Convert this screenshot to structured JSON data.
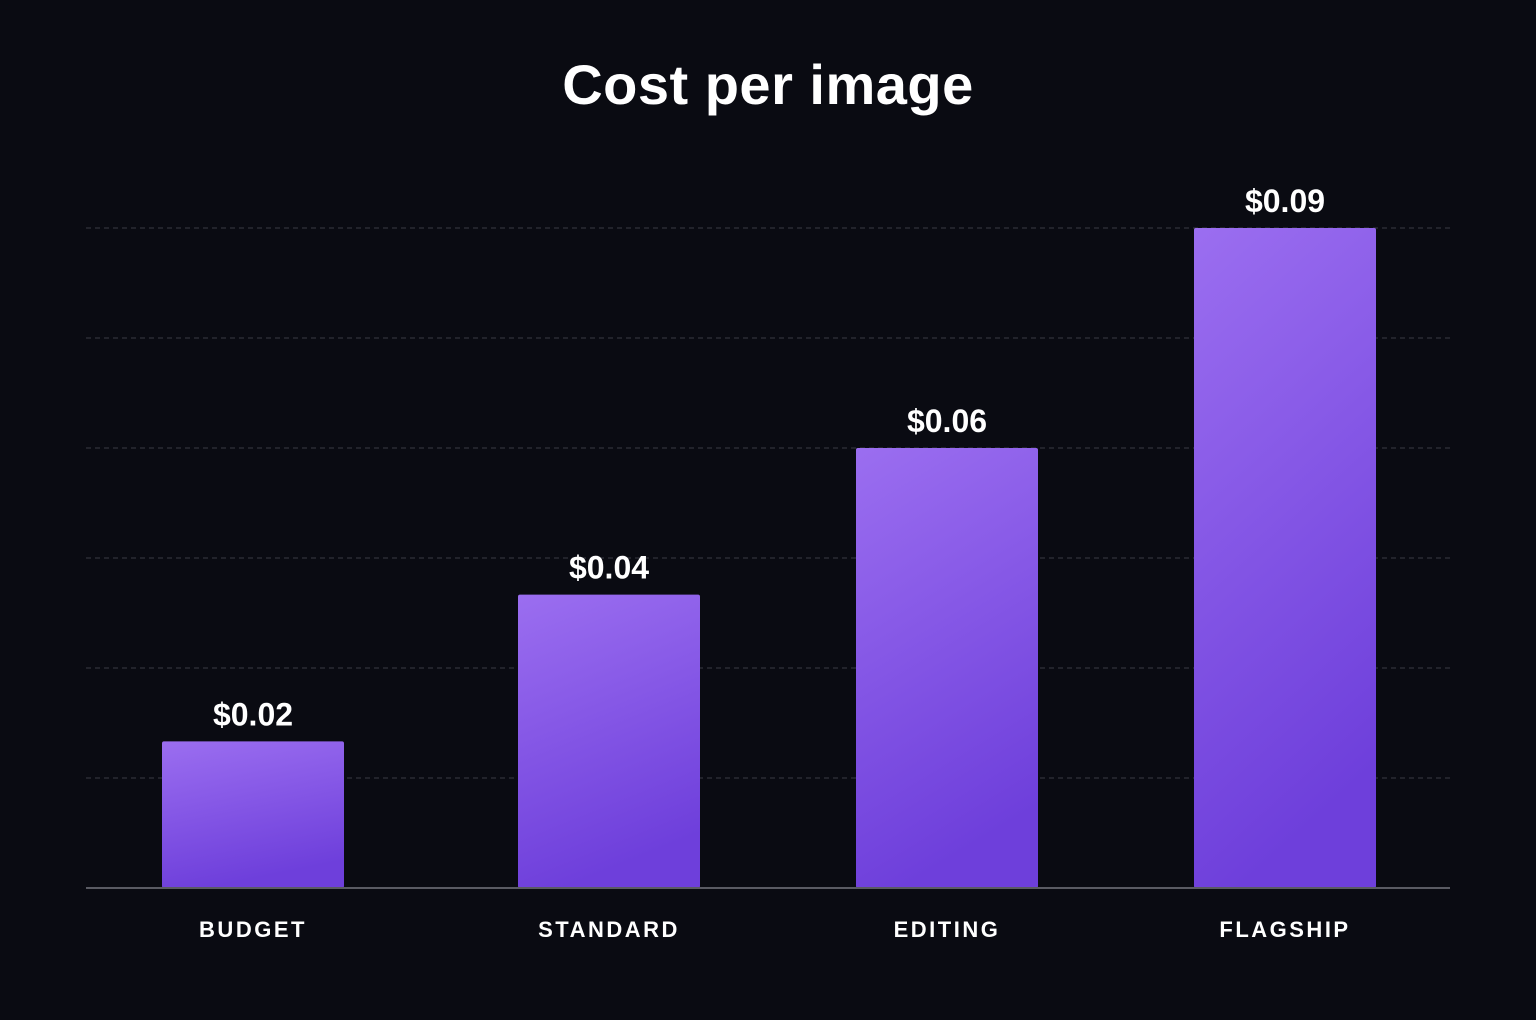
{
  "chart_data": {
    "type": "bar",
    "title": "Cost per image",
    "xlabel": "",
    "ylabel": "",
    "categories": [
      "BUDGET",
      "STANDARD",
      "EDITING",
      "FLAGSHIP"
    ],
    "values": [
      0.02,
      0.04,
      0.06,
      0.09
    ],
    "value_labels": [
      "$0.02",
      "$0.04",
      "$0.06",
      "$0.09"
    ],
    "ylim": [
      0,
      0.09
    ],
    "grid": true,
    "legend": "none",
    "colors": {
      "background": "#0a0b12",
      "bar_top": "#9b6ef0",
      "bar_bottom": "#6e3fdb",
      "grid": "#3a3b44",
      "axis": "#5a5b63",
      "text": "#ffffff"
    }
  }
}
